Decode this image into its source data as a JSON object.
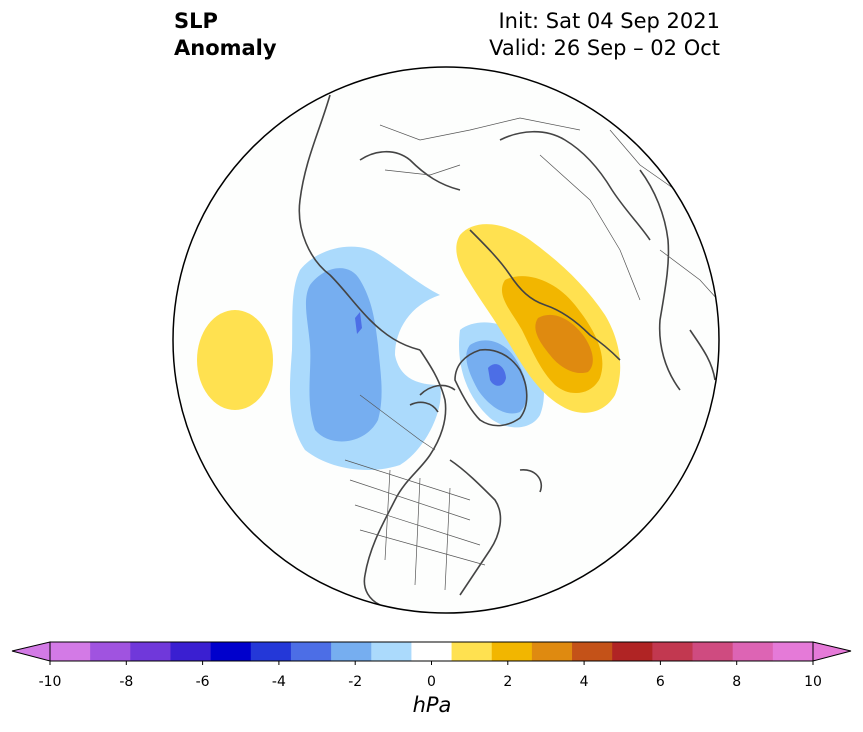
{
  "header": {
    "title_line1": "SLP",
    "title_line2": "Anomaly",
    "init": "Init: Sat 04 Sep 2021",
    "valid": "Valid: 26 Sep – 02 Oct"
  },
  "colorbar": {
    "units": "hPa",
    "tick_labels": [
      "-10",
      "-8",
      "-6",
      "-4",
      "-2",
      "0",
      "2",
      "4",
      "6",
      "8",
      "10"
    ],
    "colors": [
      "#d37ae6",
      "#a053e0",
      "#7038da",
      "#3a1fd1",
      "#0000cc",
      "#2438d8",
      "#4c6ee6",
      "#76aef0",
      "#abdafc",
      "#ffffff",
      "#ffe150",
      "#f2b600",
      "#df8a10",
      "#c45218",
      "#b02424",
      "#c23850",
      "#cf4b80",
      "#dd64b4",
      "#e57ad8"
    ],
    "extend_low_color": "#d37ae6",
    "extend_high_color": "#e57ad8"
  },
  "anomaly_colors": {
    "light_yellow": "#ffe150",
    "yellow": "#f2b600",
    "orange": "#df8a10",
    "light_blue": "#abdafc",
    "blue": "#76aef0",
    "darker_blue": "#4c6ee6",
    "coast": "#444444"
  }
}
